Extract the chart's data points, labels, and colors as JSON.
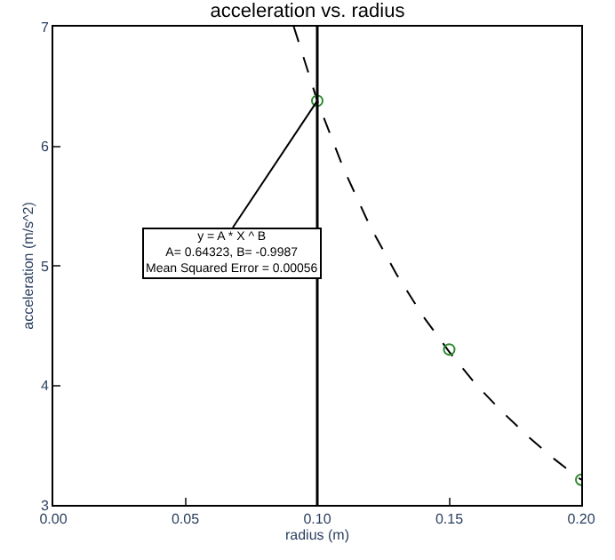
{
  "chart_data": {
    "type": "scatter",
    "title": "acceleration vs. radius",
    "xlabel": "radius (m)",
    "ylabel": "acceleration (m/s^2)",
    "xlim": [
      0,
      0.2
    ],
    "xticks": [
      {
        "value": 0,
        "label": "0.00"
      },
      0.05,
      {
        "value": 0.1,
        "label": "0.10"
      },
      0.15,
      {
        "value": 0.2,
        "label": "0.20"
      }
    ],
    "ylim": [
      3,
      7
    ],
    "yticks": [
      3,
      4,
      5,
      6,
      7
    ],
    "series": [
      {
        "type": "line",
        "color": "#000000",
        "line_style": "dashed",
        "marker": "none",
        "x": [
          0.0911,
          0.1,
          0.11,
          0.12,
          0.13,
          0.14,
          0.15,
          0.16,
          0.17,
          0.18,
          0.19,
          0.2
        ],
        "values": [
          7,
          6.38,
          5.81,
          5.33,
          4.93,
          4.58,
          4.28,
          4.01,
          3.78,
          3.57,
          3.38,
          3.21
        ]
      },
      {
        "color": "#2e8b2e",
        "marker": "circle",
        "x": [
          0.1,
          0.15,
          0.2
        ],
        "values": [
          6.38,
          4.3,
          3.21
        ]
      }
    ],
    "ref_lines": [
      {
        "axis": "x",
        "value": 0.1,
        "color": "#000000"
      }
    ],
    "annotations": [
      {
        "text": "y = A * X ^ B\nA= 0.64323, B= -0.9987\nMean Squared Error = 0.00056",
        "x": 0.1,
        "y": 6.38
      }
    ]
  }
}
